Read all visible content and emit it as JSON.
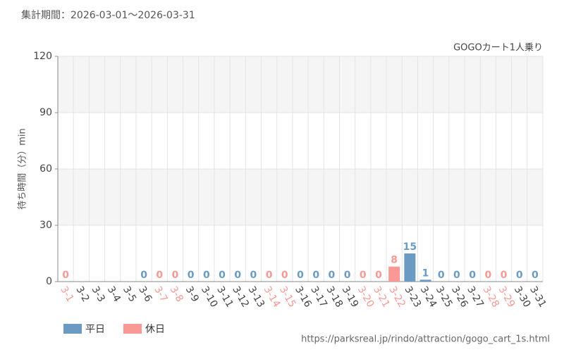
{
  "chart_data": {
    "type": "bar",
    "title": "集計期間：2026-03-01～2026-03-31",
    "subtitle": "GOGOカート1人乗り",
    "y_label": "待ち時間（分）min",
    "source": "https://parksreal.jp/rindo/attraction/gogo_cart_1s.html",
    "categories": [
      "3-1",
      "3-2",
      "3-3",
      "3-4",
      "3-5",
      "3-6",
      "3-7",
      "3-8",
      "3-9",
      "3-10",
      "3-11",
      "3-12",
      "3-13",
      "3-14",
      "3-15",
      "3-16",
      "3-17",
      "3-18",
      "3-19",
      "3-20",
      "3-21",
      "3-22",
      "3-23",
      "3-24",
      "3-25",
      "3-26",
      "3-27",
      "3-28",
      "3-29",
      "3-30",
      "3-31"
    ],
    "series": [
      {
        "name": "平日",
        "color": "#6b9bc3",
        "values": [
          null,
          null,
          null,
          null,
          null,
          0,
          null,
          null,
          0,
          0,
          0,
          0,
          0,
          null,
          null,
          0,
          0,
          0,
          0,
          null,
          null,
          null,
          15,
          1,
          0,
          0,
          0,
          null,
          null,
          0,
          0
        ]
      },
      {
        "name": "休日",
        "color": "#f99895",
        "values": [
          0,
          null,
          null,
          null,
          null,
          null,
          0,
          0,
          null,
          null,
          null,
          null,
          null,
          0,
          0,
          null,
          null,
          null,
          null,
          0,
          0,
          8,
          null,
          null,
          null,
          null,
          null,
          0,
          0,
          null,
          null
        ]
      }
    ],
    "ylim": [
      0,
      120
    ],
    "yticks": [
      0,
      30,
      60,
      90,
      120
    ],
    "grid": true
  }
}
